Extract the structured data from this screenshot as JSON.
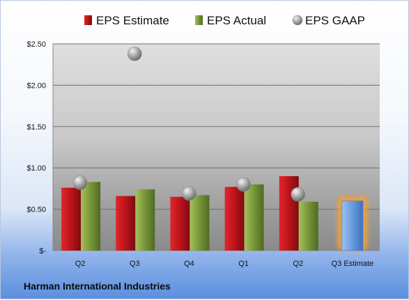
{
  "company_label": "Harman International Industries",
  "chart_data": {
    "type": "bar",
    "categories": [
      "Q2",
      "Q3",
      "Q4",
      "Q1",
      "Q2",
      "Q3 Estimate"
    ],
    "series": [
      {
        "name": "EPS Estimate",
        "type": "bar",
        "color": "#c0151b",
        "values": [
          0.76,
          0.66,
          0.65,
          0.77,
          0.9,
          null
        ]
      },
      {
        "name": "EPS Actual",
        "type": "bar",
        "color": "#7a9a3a",
        "values": [
          0.83,
          0.74,
          0.67,
          0.8,
          0.59,
          null
        ]
      },
      {
        "name": "EPS GAAP",
        "type": "scatter",
        "color": "#a8a8a8",
        "values": [
          0.82,
          2.38,
          0.69,
          0.8,
          0.68,
          null
        ]
      },
      {
        "name": "",
        "type": "bar",
        "color": "#6c9ee0",
        "highlight": true,
        "values": [
          null,
          null,
          null,
          null,
          null,
          0.6
        ]
      }
    ],
    "ylim": [
      0,
      2.5
    ],
    "yticks": [
      {
        "value": 0,
        "label": "$-"
      },
      {
        "value": 0.5,
        "label": "$0.50"
      },
      {
        "value": 1.0,
        "label": "$1.00"
      },
      {
        "value": 1.5,
        "label": "$1.50"
      },
      {
        "value": 2.0,
        "label": "$2.00"
      },
      {
        "value": 2.5,
        "label": "$2.50"
      }
    ],
    "grid": true,
    "legend_position": "top",
    "xlabel": "",
    "ylabel": ""
  }
}
